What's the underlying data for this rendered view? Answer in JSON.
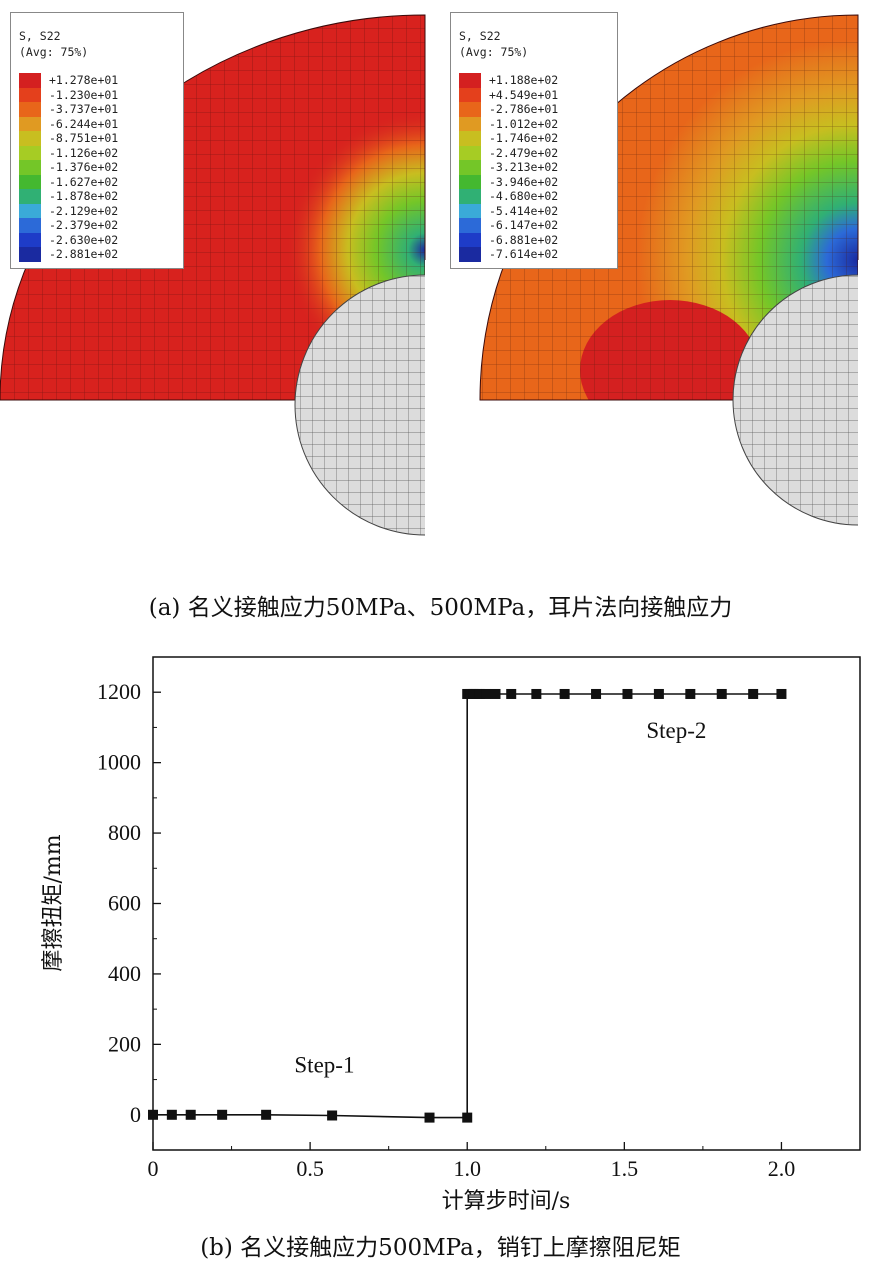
{
  "figure_a": {
    "caption": "(a) 名义接触应力50MPa、500MPa，耳片法向接触应力",
    "left": {
      "title_line1": "S, S22",
      "title_line2": "(Avg: 75%)",
      "values": [
        "+1.278e+01",
        "-1.230e+01",
        "-3.737e+01",
        "-6.244e+01",
        "-8.751e+01",
        "-1.126e+02",
        "-1.376e+02",
        "-1.627e+02",
        "-1.878e+02",
        "-2.129e+02",
        "-2.379e+02",
        "-2.630e+02",
        "-2.881e+02"
      ]
    },
    "right": {
      "title_line1": "S, S22",
      "title_line2": "(Avg: 75%)",
      "values": [
        "+1.188e+02",
        "+4.549e+01",
        "-2.786e+01",
        "-1.012e+02",
        "-1.746e+02",
        "-2.479e+02",
        "-3.213e+02",
        "-3.946e+02",
        "-4.680e+02",
        "-5.414e+02",
        "-6.147e+02",
        "-6.881e+02",
        "-7.614e+02"
      ]
    },
    "legend_colors": [
      "#d42020",
      "#e4401c",
      "#e8661a",
      "#e09a22",
      "#c8be20",
      "#a6cc24",
      "#74c628",
      "#44b830",
      "#30b074",
      "#3aaad8",
      "#2c6ad8",
      "#1e3cc8",
      "#1a2aa0"
    ]
  },
  "chart_data": {
    "type": "line",
    "title": "",
    "xlabel": "计算步时间/s",
    "ylabel": "摩擦扭矩/mm",
    "xlim": [
      0,
      2.25
    ],
    "ylim": [
      -100,
      1300
    ],
    "xticks": [
      0,
      0.5,
      1.0,
      1.5,
      2.0
    ],
    "xtick_labels": [
      "0",
      "0.5",
      "1.0",
      "1.5",
      "2.0"
    ],
    "yticks": [
      0,
      200,
      400,
      600,
      800,
      1000,
      1200
    ],
    "ytick_labels": [
      "0",
      "200",
      "400",
      "600",
      "800",
      "1000",
      "1200"
    ],
    "series": [
      {
        "x": [
          0,
          0.06,
          0.12,
          0.22,
          0.36,
          0.57,
          0.88,
          1.0,
          1.0,
          1.01,
          1.02,
          1.03,
          1.04,
          1.06,
          1.09,
          1.14,
          1.22,
          1.31,
          1.41,
          1.51,
          1.61,
          1.71,
          1.81,
          1.91,
          2.0
        ],
        "y": [
          0,
          0,
          0,
          0,
          0,
          -2,
          -8,
          -8,
          1195,
          1195,
          1195,
          1195,
          1195,
          1195,
          1195,
          1195,
          1195,
          1195,
          1195,
          1195,
          1195,
          1195,
          1195,
          1195,
          1195
        ]
      }
    ],
    "annotations": [
      {
        "text": "Step-1",
        "x": 0.45,
        "y": 120
      },
      {
        "text": "Step-2",
        "x": 1.57,
        "y": 1070
      }
    ],
    "grid": false,
    "legend": "none"
  },
  "figure_b": {
    "caption": "(b) 名义接触应力500MPa，销钉上摩擦阻尼矩"
  }
}
